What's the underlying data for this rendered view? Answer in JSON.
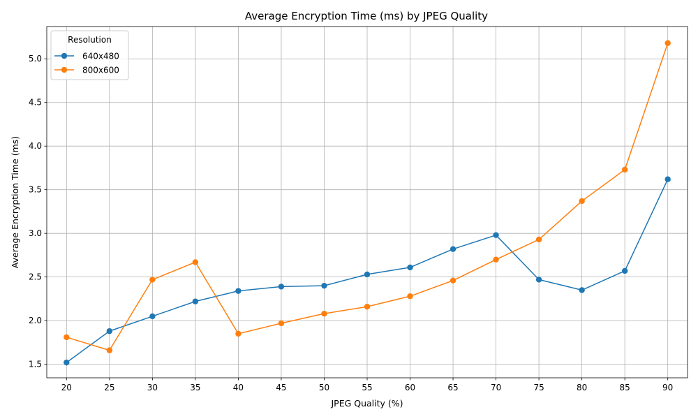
{
  "chart_data": {
    "type": "line",
    "title": "Average Encryption Time (ms) by JPEG Quality",
    "xlabel": "JPEG Quality (%)",
    "ylabel": "Average Encryption Time (ms)",
    "x": [
      20,
      25,
      30,
      35,
      40,
      45,
      50,
      55,
      60,
      65,
      70,
      75,
      80,
      85,
      90
    ],
    "x_ticks": [
      "20",
      "25",
      "30",
      "35",
      "40",
      "45",
      "50",
      "55",
      "60",
      "65",
      "70",
      "75",
      "80",
      "85",
      "90"
    ],
    "y_ticks": [
      "1.5",
      "2.0",
      "2.5",
      "3.0",
      "3.5",
      "4.0",
      "4.5",
      "5.0"
    ],
    "y_tick_values": [
      1.5,
      2.0,
      2.5,
      3.0,
      3.5,
      4.0,
      4.5,
      5.0
    ],
    "xlim": [
      17.7,
      92.3
    ],
    "ylim": [
      1.345,
      5.37
    ],
    "grid": true,
    "legend": {
      "title": "Resolution",
      "position": "top-left"
    },
    "series": [
      {
        "name": "640x480",
        "color": "#1f77b4",
        "values": [
          1.52,
          1.88,
          2.05,
          2.22,
          2.34,
          2.39,
          2.4,
          2.53,
          2.61,
          2.82,
          2.98,
          2.47,
          2.35,
          2.57,
          3.62
        ]
      },
      {
        "name": "800x600",
        "color": "#ff7f0e",
        "values": [
          1.81,
          1.66,
          2.47,
          2.67,
          1.85,
          1.97,
          2.08,
          2.16,
          2.28,
          2.46,
          2.7,
          2.93,
          3.37,
          3.73,
          5.18
        ]
      }
    ]
  }
}
